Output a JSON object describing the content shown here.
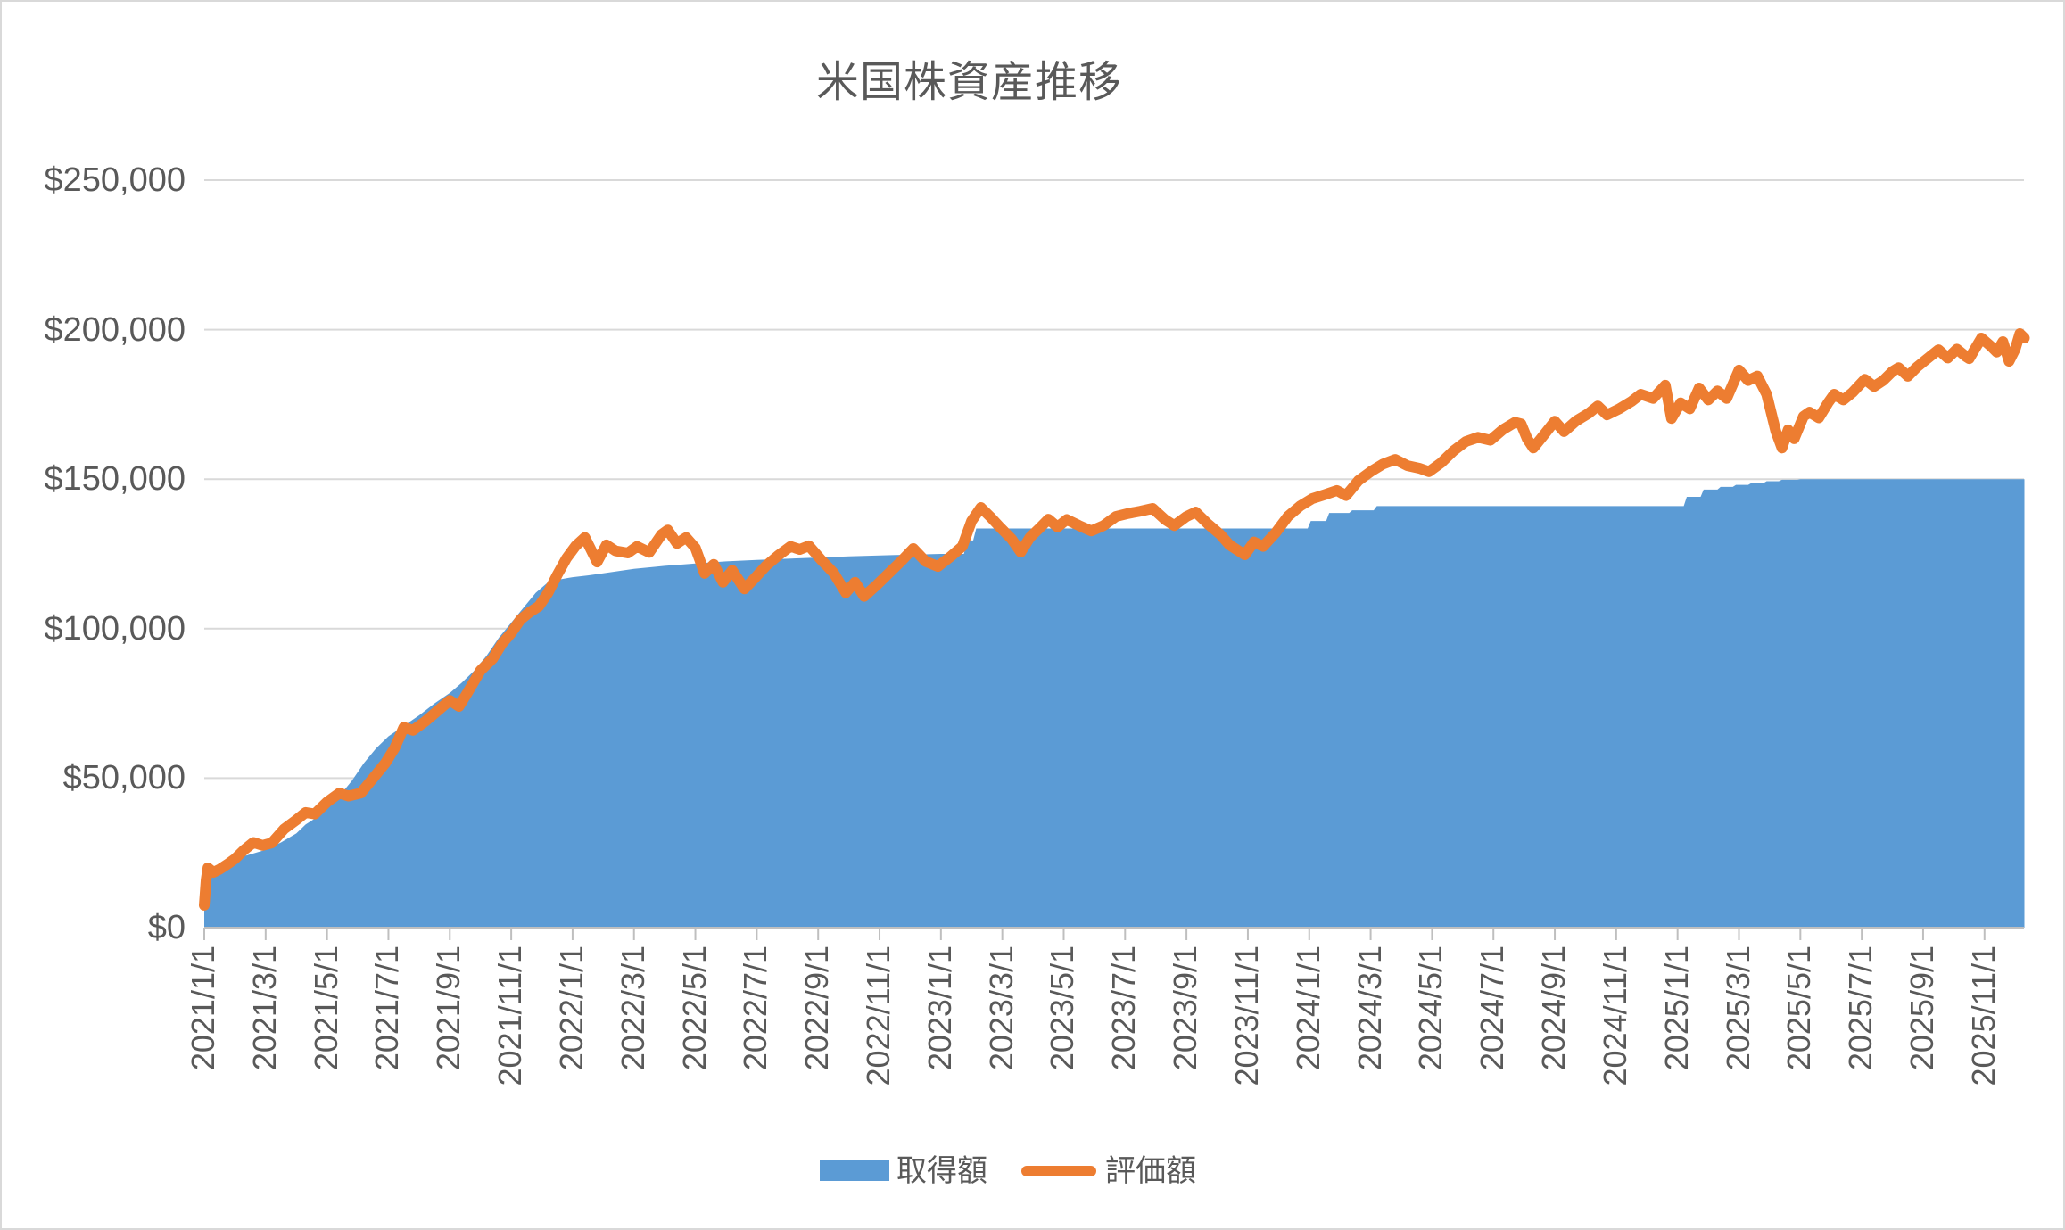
{
  "chart_data": {
    "type": "area",
    "title": "米国株資産推移",
    "x_unit": "months since 2021-01-01",
    "xlim": [
      0,
      59.3
    ],
    "ylim": [
      0,
      250000
    ],
    "y_tick_step": 50000,
    "y_tick_labels": [
      "$0",
      "$50,000",
      "$100,000",
      "$150,000",
      "$200,000",
      "$250,000"
    ],
    "x_tick_interval_months": 2,
    "x_tick_labels": [
      "2021/1/1",
      "2021/3/1",
      "2021/5/1",
      "2021/7/1",
      "2021/9/1",
      "2021/11/1",
      "2022/1/1",
      "2022/3/1",
      "2022/5/1",
      "2022/7/1",
      "2022/9/1",
      "2022/11/1",
      "2023/1/1",
      "2023/3/1",
      "2023/5/1",
      "2023/7/1",
      "2023/9/1",
      "2023/11/1",
      "2024/1/1",
      "2024/3/1",
      "2024/5/1",
      "2024/7/1",
      "2024/9/1",
      "2024/11/1",
      "2025/1/1",
      "2025/3/1",
      "2025/5/1",
      "2025/7/1",
      "2025/9/1",
      "2025/11/1"
    ],
    "grid": "horizontal",
    "legend_position": "bottom",
    "colors": {
      "area_series": "#5B9BD5",
      "line_series": "#ED7D31",
      "text": "#595959",
      "gridline": "#D9D9D9",
      "axis_line": "#BFBFBF",
      "background": "#FFFFFF",
      "chart_border": "#D9D9D9"
    },
    "series": [
      {
        "name": "取得額",
        "type": "area",
        "color": "#5B9BD5",
        "points": [
          [
            0,
            7500
          ],
          [
            0.08,
            19500
          ],
          [
            0.5,
            21000
          ],
          [
            1.0,
            23000
          ],
          [
            1.5,
            24500
          ],
          [
            2.0,
            26000
          ],
          [
            2.5,
            28500
          ],
          [
            3.0,
            31500
          ],
          [
            3.3,
            34500
          ],
          [
            3.6,
            36500
          ],
          [
            4.0,
            40000
          ],
          [
            4.4,
            44000
          ],
          [
            4.8,
            49000
          ],
          [
            5.2,
            55000
          ],
          [
            5.6,
            60000
          ],
          [
            6.0,
            64000
          ],
          [
            6.5,
            67500
          ],
          [
            7.0,
            71000
          ],
          [
            7.5,
            75000
          ],
          [
            8.0,
            78500
          ],
          [
            8.4,
            82000
          ],
          [
            8.8,
            86000
          ],
          [
            9.2,
            91000
          ],
          [
            9.6,
            97000
          ],
          [
            10.0,
            102000
          ],
          [
            10.4,
            107000
          ],
          [
            10.8,
            112000
          ],
          [
            11.2,
            115500
          ],
          [
            11.6,
            116500
          ],
          [
            12.0,
            117200
          ],
          [
            12.5,
            117800
          ],
          [
            13.0,
            118500
          ],
          [
            14.0,
            120000
          ],
          [
            15.0,
            121000
          ],
          [
            16.0,
            121800
          ],
          [
            17.0,
            122500
          ],
          [
            18.0,
            123000
          ],
          [
            19.5,
            123600
          ],
          [
            21.0,
            124200
          ],
          [
            22.5,
            124600
          ],
          [
            24.0,
            125000
          ],
          [
            24.75,
            125000
          ],
          [
            24.85,
            129500
          ],
          [
            25.05,
            129500
          ],
          [
            25.15,
            133500
          ],
          [
            35.95,
            133500
          ],
          [
            36.05,
            136000
          ],
          [
            36.55,
            136000
          ],
          [
            36.65,
            138700
          ],
          [
            37.3,
            138700
          ],
          [
            37.4,
            139600
          ],
          [
            38.1,
            139600
          ],
          [
            38.2,
            141000
          ],
          [
            48.2,
            141000
          ],
          [
            48.3,
            144100
          ],
          [
            48.75,
            144100
          ],
          [
            48.85,
            146500
          ],
          [
            49.3,
            146500
          ],
          [
            49.4,
            147400
          ],
          [
            49.8,
            147400
          ],
          [
            49.9,
            148100
          ],
          [
            50.3,
            148100
          ],
          [
            50.4,
            148700
          ],
          [
            50.8,
            148700
          ],
          [
            50.9,
            149300
          ],
          [
            51.3,
            149300
          ],
          [
            51.4,
            149800
          ],
          [
            51.9,
            149800
          ],
          [
            52.0,
            150000
          ],
          [
            59.3,
            150000
          ]
        ]
      },
      {
        "name": "評価額",
        "type": "line",
        "color": "#ED7D31",
        "points": [
          [
            0,
            7500
          ],
          [
            0.06,
            16000
          ],
          [
            0.12,
            20000
          ],
          [
            0.3,
            18500
          ],
          [
            0.5,
            19500
          ],
          [
            0.8,
            21500
          ],
          [
            1.0,
            23000
          ],
          [
            1.3,
            26000
          ],
          [
            1.6,
            28500
          ],
          [
            1.9,
            27500
          ],
          [
            2.2,
            28300
          ],
          [
            2.6,
            33000
          ],
          [
            3.0,
            36000
          ],
          [
            3.3,
            38500
          ],
          [
            3.6,
            38000
          ],
          [
            4.0,
            42000
          ],
          [
            4.4,
            45000
          ],
          [
            4.7,
            44000
          ],
          [
            5.1,
            45000
          ],
          [
            5.5,
            50000
          ],
          [
            5.9,
            55000
          ],
          [
            6.2,
            60000
          ],
          [
            6.5,
            67000
          ],
          [
            6.8,
            66000
          ],
          [
            7.2,
            69000
          ],
          [
            7.6,
            72500
          ],
          [
            8.0,
            76000
          ],
          [
            8.3,
            74000
          ],
          [
            8.6,
            79000
          ],
          [
            9.0,
            86000
          ],
          [
            9.4,
            90000
          ],
          [
            9.7,
            95000
          ],
          [
            10.0,
            98500
          ],
          [
            10.3,
            103000
          ],
          [
            10.6,
            105500
          ],
          [
            10.9,
            107500
          ],
          [
            11.2,
            112000
          ],
          [
            11.5,
            118000
          ],
          [
            11.8,
            123500
          ],
          [
            12.1,
            127700
          ],
          [
            12.4,
            130500
          ],
          [
            12.8,
            122300
          ],
          [
            13.1,
            128000
          ],
          [
            13.4,
            126000
          ],
          [
            13.8,
            125300
          ],
          [
            14.1,
            127500
          ],
          [
            14.5,
            125500
          ],
          [
            14.9,
            131500
          ],
          [
            15.1,
            133000
          ],
          [
            15.4,
            128500
          ],
          [
            15.7,
            130500
          ],
          [
            16.0,
            127000
          ],
          [
            16.3,
            118500
          ],
          [
            16.6,
            121500
          ],
          [
            16.9,
            115500
          ],
          [
            17.2,
            119500
          ],
          [
            17.6,
            113300
          ],
          [
            17.9,
            116500
          ],
          [
            18.3,
            121000
          ],
          [
            18.7,
            124500
          ],
          [
            19.1,
            127500
          ],
          [
            19.4,
            126500
          ],
          [
            19.7,
            127700
          ],
          [
            20.1,
            123000
          ],
          [
            20.5,
            118700
          ],
          [
            20.9,
            112000
          ],
          [
            21.2,
            115500
          ],
          [
            21.5,
            110800
          ],
          [
            21.9,
            114500
          ],
          [
            22.3,
            118500
          ],
          [
            22.7,
            122500
          ],
          [
            23.1,
            126800
          ],
          [
            23.5,
            122500
          ],
          [
            23.9,
            120800
          ],
          [
            24.3,
            124000
          ],
          [
            24.7,
            127500
          ],
          [
            25.0,
            136000
          ],
          [
            25.3,
            140500
          ],
          [
            25.6,
            137500
          ],
          [
            25.9,
            134200
          ],
          [
            26.3,
            130000
          ],
          [
            26.6,
            125600
          ],
          [
            26.9,
            130500
          ],
          [
            27.2,
            133500
          ],
          [
            27.5,
            136600
          ],
          [
            27.8,
            134000
          ],
          [
            28.1,
            136500
          ],
          [
            28.5,
            134500
          ],
          [
            28.9,
            132700
          ],
          [
            29.3,
            134500
          ],
          [
            29.7,
            137500
          ],
          [
            30.1,
            138500
          ],
          [
            30.5,
            139300
          ],
          [
            30.9,
            140200
          ],
          [
            31.3,
            136500
          ],
          [
            31.6,
            134500
          ],
          [
            32.0,
            137500
          ],
          [
            32.3,
            139000
          ],
          [
            32.7,
            135000
          ],
          [
            33.1,
            131500
          ],
          [
            33.4,
            128000
          ],
          [
            33.9,
            124700
          ],
          [
            34.2,
            129000
          ],
          [
            34.5,
            127500
          ],
          [
            34.9,
            132000
          ],
          [
            35.3,
            137500
          ],
          [
            35.7,
            141000
          ],
          [
            36.1,
            143500
          ],
          [
            36.5,
            144800
          ],
          [
            36.9,
            146200
          ],
          [
            37.2,
            144500
          ],
          [
            37.6,
            149500
          ],
          [
            38.0,
            152500
          ],
          [
            38.4,
            155000
          ],
          [
            38.8,
            156600
          ],
          [
            39.2,
            154500
          ],
          [
            39.6,
            153600
          ],
          [
            39.9,
            152500
          ],
          [
            40.3,
            155500
          ],
          [
            40.7,
            159500
          ],
          [
            41.1,
            162600
          ],
          [
            41.5,
            164000
          ],
          [
            41.9,
            163000
          ],
          [
            42.3,
            166500
          ],
          [
            42.7,
            169000
          ],
          [
            42.9,
            168500
          ],
          [
            43.1,
            163500
          ],
          [
            43.3,
            160400
          ],
          [
            43.7,
            165500
          ],
          [
            44.0,
            169400
          ],
          [
            44.3,
            165900
          ],
          [
            44.7,
            169500
          ],
          [
            45.1,
            172000
          ],
          [
            45.4,
            174500
          ],
          [
            45.7,
            171500
          ],
          [
            46.1,
            173500
          ],
          [
            46.5,
            176000
          ],
          [
            46.8,
            178400
          ],
          [
            47.2,
            177000
          ],
          [
            47.6,
            181400
          ],
          [
            47.8,
            170300
          ],
          [
            48.1,
            175500
          ],
          [
            48.4,
            173500
          ],
          [
            48.7,
            180500
          ],
          [
            49.0,
            176500
          ],
          [
            49.3,
            179500
          ],
          [
            49.6,
            177000
          ],
          [
            50.0,
            186500
          ],
          [
            50.3,
            183000
          ],
          [
            50.6,
            184500
          ],
          [
            50.9,
            178400
          ],
          [
            51.2,
            166000
          ],
          [
            51.4,
            160400
          ],
          [
            51.6,
            166500
          ],
          [
            51.8,
            163500
          ],
          [
            52.1,
            171000
          ],
          [
            52.3,
            172400
          ],
          [
            52.6,
            170500
          ],
          [
            52.9,
            175500
          ],
          [
            53.1,
            178400
          ],
          [
            53.4,
            176500
          ],
          [
            53.7,
            179000
          ],
          [
            54.1,
            183400
          ],
          [
            54.4,
            181000
          ],
          [
            54.7,
            183000
          ],
          [
            55.0,
            186000
          ],
          [
            55.2,
            187300
          ],
          [
            55.5,
            184400
          ],
          [
            55.8,
            187500
          ],
          [
            56.1,
            190000
          ],
          [
            56.5,
            193300
          ],
          [
            56.8,
            190500
          ],
          [
            57.1,
            193500
          ],
          [
            57.4,
            191000
          ],
          [
            57.5,
            190300
          ],
          [
            57.9,
            197200
          ],
          [
            58.2,
            194500
          ],
          [
            58.4,
            192500
          ],
          [
            58.6,
            196000
          ],
          [
            58.8,
            189400
          ],
          [
            59.0,
            193500
          ],
          [
            59.15,
            198700
          ],
          [
            59.3,
            197200
          ]
        ]
      }
    ],
    "legend": [
      {
        "label": "取得額",
        "swatch": "area"
      },
      {
        "label": "評価額",
        "swatch": "line"
      }
    ]
  },
  "layout_note": "single chart image, no interactive controls visible"
}
